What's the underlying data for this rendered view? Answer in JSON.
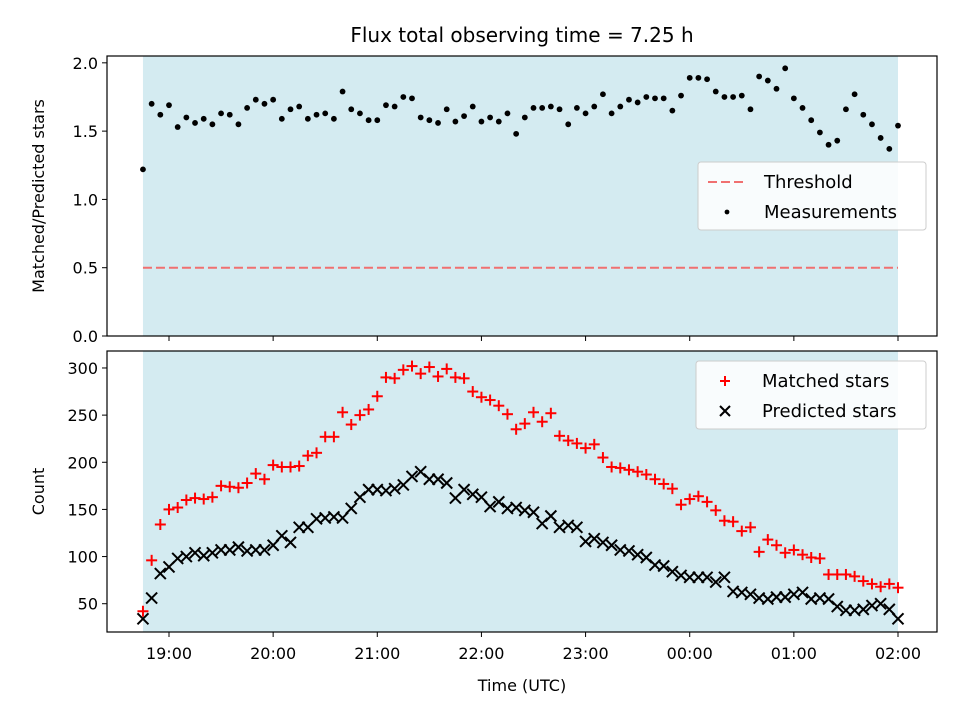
{
  "chart_data": {
    "type": "scatter",
    "title": "Flux total observing time = 7.25 h",
    "xlabel": "Time (UTC)",
    "x_tick_labels": [
      "19:00",
      "20:00",
      "21:00",
      "22:00",
      "23:00",
      "00:00",
      "01:00",
      "02:00"
    ],
    "shaded_span": [
      "18:45",
      "02:00"
    ],
    "colors": {
      "shade": "#d4ebf1",
      "threshold": "#f07070",
      "measurements": "#000000",
      "matched": "#ff0000",
      "predicted": "#000000"
    },
    "panels": [
      {
        "ylabel": "Matched/Predicted stars",
        "ylim": [
          0,
          2.05
        ],
        "yticks": [
          "0.0",
          "0.5",
          "1.0",
          "1.5",
          "2.0"
        ],
        "legend": "center-right",
        "threshold": {
          "name": "Threshold",
          "value": 0.5,
          "style": "dashed"
        },
        "series": [
          {
            "name": "Measurements",
            "marker": "dot",
            "times": [
              "18:45",
              "18:50",
              "18:55",
              "19:00",
              "19:05",
              "19:10",
              "19:15",
              "19:20",
              "19:25",
              "19:30",
              "19:35",
              "19:40",
              "19:45",
              "19:50",
              "19:55",
              "20:00",
              "20:05",
              "20:10",
              "20:15",
              "20:20",
              "20:25",
              "20:30",
              "20:35",
              "20:40",
              "20:45",
              "20:50",
              "20:55",
              "21:00",
              "21:05",
              "21:10",
              "21:15",
              "21:20",
              "21:25",
              "21:30",
              "21:35",
              "21:40",
              "21:45",
              "21:50",
              "21:55",
              "22:00",
              "22:05",
              "22:10",
              "22:15",
              "22:20",
              "22:25",
              "22:30",
              "22:35",
              "22:40",
              "22:45",
              "22:50",
              "22:55",
              "23:00",
              "23:05",
              "23:10",
              "23:15",
              "23:20",
              "23:25",
              "23:30",
              "23:35",
              "23:40",
              "23:45",
              "23:50",
              "23:55",
              "00:00",
              "00:05",
              "00:10",
              "00:15",
              "00:20",
              "00:25",
              "00:30",
              "00:35",
              "00:40",
              "00:45",
              "00:50",
              "00:55",
              "01:00",
              "01:05",
              "01:10",
              "01:15",
              "01:20",
              "01:25",
              "01:30",
              "01:35",
              "01:40",
              "01:45",
              "01:50",
              "01:55",
              "02:00"
            ],
            "values": [
              1.22,
              1.7,
              1.62,
              1.69,
              1.53,
              1.6,
              1.56,
              1.59,
              1.55,
              1.63,
              1.62,
              1.55,
              1.67,
              1.73,
              1.7,
              1.73,
              1.59,
              1.66,
              1.68,
              1.59,
              1.62,
              1.63,
              1.59,
              1.79,
              1.66,
              1.63,
              1.58,
              1.58,
              1.69,
              1.68,
              1.75,
              1.74,
              1.6,
              1.58,
              1.56,
              1.66,
              1.57,
              1.61,
              1.68,
              1.57,
              1.6,
              1.57,
              1.63,
              1.48,
              1.6,
              1.67,
              1.67,
              1.68,
              1.66,
              1.55,
              1.67,
              1.63,
              1.68,
              1.77,
              1.63,
              1.68,
              1.73,
              1.71,
              1.75,
              1.74,
              1.74,
              1.65,
              1.76,
              1.89,
              1.89,
              1.88,
              1.79,
              1.75,
              1.75,
              1.76,
              1.66,
              1.9,
              1.87,
              1.81,
              1.96,
              1.74,
              1.67,
              1.58,
              1.49,
              1.4,
              1.43,
              1.66,
              1.77,
              1.62,
              1.55,
              1.45,
              1.37,
              1.54
            ]
          }
        ]
      },
      {
        "ylabel": "Count",
        "ylim": [
          20,
          318
        ],
        "yticks": [
          "50",
          "100",
          "150",
          "200",
          "250",
          "300"
        ],
        "legend": "upper-right",
        "series": [
          {
            "name": "Matched stars",
            "marker": "plus",
            "times": [
              "18:45",
              "18:50",
              "18:55",
              "19:00",
              "19:05",
              "19:10",
              "19:15",
              "19:20",
              "19:25",
              "19:30",
              "19:35",
              "19:40",
              "19:45",
              "19:50",
              "19:55",
              "20:00",
              "20:05",
              "20:10",
              "20:15",
              "20:20",
              "20:25",
              "20:30",
              "20:35",
              "20:40",
              "20:45",
              "20:50",
              "20:55",
              "21:00",
              "21:05",
              "21:10",
              "21:15",
              "21:20",
              "21:25",
              "21:30",
              "21:35",
              "21:40",
              "21:45",
              "21:50",
              "21:55",
              "22:00",
              "22:05",
              "22:10",
              "22:15",
              "22:20",
              "22:25",
              "22:30",
              "22:35",
              "22:40",
              "22:45",
              "22:50",
              "22:55",
              "23:00",
              "23:05",
              "23:10",
              "23:15",
              "23:20",
              "23:25",
              "23:30",
              "23:35",
              "23:40",
              "23:45",
              "23:50",
              "23:55",
              "00:00",
              "00:05",
              "00:10",
              "00:15",
              "00:20",
              "00:25",
              "00:30",
              "00:35",
              "00:40",
              "00:45",
              "00:50",
              "00:55",
              "01:00",
              "01:05",
              "01:10",
              "01:15",
              "01:20",
              "01:25",
              "01:30",
              "01:35",
              "01:40",
              "01:45",
              "01:50",
              "01:55",
              "02:00"
            ],
            "values": [
              42,
              96,
              134,
              150,
              152,
              160,
              162,
              161,
              163,
              175,
              174,
              173,
              178,
              188,
              182,
              197,
              195,
              195,
              196,
              207,
              210,
              227,
              227,
              253,
              240,
              250,
              256,
              270,
              290,
              289,
              298,
              302,
              294,
              301,
              291,
              299,
              290,
              289,
              275,
              269,
              266,
              260,
              251,
              235,
              241,
              253,
              243,
              252,
              228,
              223,
              220,
              215,
              219,
              205,
              195,
              194,
              192,
              190,
              187,
              182,
              177,
              172,
              155,
              161,
              164,
              158,
              149,
              138,
              137,
              127,
              131,
              105,
              118,
              112,
              104,
              107,
              102,
              99,
              98,
              81,
              81,
              81,
              79,
              74,
              71,
              68,
              71,
              67
            ]
          },
          {
            "name": "Predicted stars",
            "marker": "x",
            "times": [
              "18:45",
              "18:50",
              "18:55",
              "19:00",
              "19:05",
              "19:10",
              "19:15",
              "19:20",
              "19:25",
              "19:30",
              "19:35",
              "19:40",
              "19:45",
              "19:50",
              "19:55",
              "20:00",
              "20:05",
              "20:10",
              "20:15",
              "20:20",
              "20:25",
              "20:30",
              "20:35",
              "20:40",
              "20:45",
              "20:50",
              "20:55",
              "21:00",
              "21:05",
              "21:10",
              "21:15",
              "21:20",
              "21:25",
              "21:30",
              "21:35",
              "21:40",
              "21:45",
              "21:50",
              "21:55",
              "22:00",
              "22:05",
              "22:10",
              "22:15",
              "22:20",
              "22:25",
              "22:30",
              "22:35",
              "22:40",
              "22:45",
              "22:50",
              "22:55",
              "23:00",
              "23:05",
              "23:10",
              "23:15",
              "23:20",
              "23:25",
              "23:30",
              "23:35",
              "23:40",
              "23:45",
              "23:50",
              "23:55",
              "00:00",
              "00:05",
              "00:10",
              "00:15",
              "00:20",
              "00:25",
              "00:30",
              "00:35",
              "00:40",
              "00:45",
              "00:50",
              "00:55",
              "01:00",
              "01:05",
              "01:10",
              "01:15",
              "01:20",
              "01:25",
              "01:30",
              "01:35",
              "01:40",
              "01:45",
              "01:50",
              "01:55",
              "02:00"
            ],
            "values": [
              34,
              56,
              82,
              89,
              98,
              100,
              104,
              101,
              104,
              107,
              107,
              110,
              106,
              107,
              107,
              112,
              122,
              115,
              131,
              131,
              140,
              141,
              142,
              141,
              151,
              163,
              171,
              171,
              170,
              172,
              176,
              185,
              190,
              182,
              182,
              178,
              162,
              171,
              166,
              163,
              153,
              158,
              151,
              152,
              149,
              147,
              135,
              143,
              131,
              133,
              131,
              116,
              119,
              115,
              112,
              107,
              106,
              102,
              99,
              91,
              90,
              84,
              80,
              78,
              78,
              78,
              73,
              78,
              63,
              62,
              60,
              56,
              55,
              57,
              57,
              60,
              62,
              55,
              56,
              55,
              47,
              43,
              43,
              44,
              48,
              50,
              44,
              34
            ]
          }
        ]
      }
    ]
  }
}
